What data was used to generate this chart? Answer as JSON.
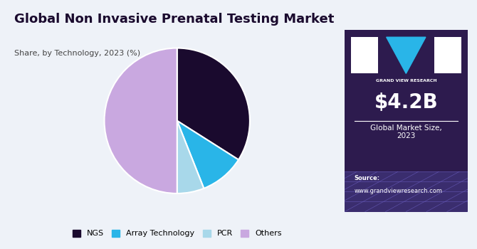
{
  "title": "Global Non Invasive Prenatal Testing Market",
  "subtitle": "Share, by Technology, 2023 (%)",
  "slices": [
    34,
    10,
    6,
    50
  ],
  "labels": [
    "NGS",
    "Array Technology",
    "PCR",
    "Others"
  ],
  "colors": [
    "#1a0a2e",
    "#29b5e8",
    "#a8d8ea",
    "#c9a8e0"
  ],
  "start_angle": 90,
  "bg_color": "#eef2f8",
  "right_bg_color": "#2d1b4e",
  "market_size": "$4.2B",
  "market_label": "Global Market Size,\n2023",
  "source_label": "Source:",
  "source_url": "www.grandviewresearch.com",
  "brand_name": "GRAND VIEW RESEARCH",
  "title_color": "#1a0a2e",
  "subtitle_color": "#444444",
  "cyan_color": "#29b5e8",
  "grid_bg_color": "#3a2d6e"
}
